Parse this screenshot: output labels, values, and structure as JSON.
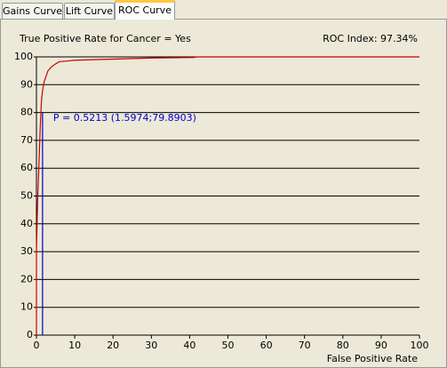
{
  "tabs": [
    "Gains Curve",
    "Lift Curve",
    "ROC Curve"
  ],
  "active_tab": 2,
  "chart_data": {
    "type": "line",
    "title": "True Positive Rate for Cancer = Yes",
    "roc_index": "ROC Index: 97.34%",
    "x_label": "False Positive Rate",
    "xlim": [
      0,
      100
    ],
    "ylim": [
      0,
      100
    ],
    "xticks": [
      0,
      10,
      20,
      30,
      40,
      50,
      60,
      70,
      80,
      90,
      100
    ],
    "yticks": [
      0,
      10,
      20,
      30,
      40,
      50,
      60,
      70,
      80,
      90,
      100
    ],
    "grid": true,
    "series": [
      {
        "color": "#cc0000",
        "x": [
          0,
          0,
          0.3,
          0.7,
          1.0,
          1.3,
          1.6,
          2,
          2.5,
          3,
          4,
          5,
          6,
          8,
          10,
          15,
          20,
          25,
          30,
          41,
          42,
          100
        ],
        "values": [
          0,
          30,
          48,
          63,
          75,
          84,
          88,
          91,
          93,
          95,
          96.5,
          97.5,
          98.3,
          98.5,
          98.8,
          99,
          99.2,
          99.4,
          99.6,
          99.8,
          100,
          100
        ]
      }
    ],
    "cutoff": {
      "x": 1.5974,
      "y": 79.8903,
      "color": "#0000cc",
      "label": "P = 0.5213 (1.5974;79.8903)"
    }
  }
}
